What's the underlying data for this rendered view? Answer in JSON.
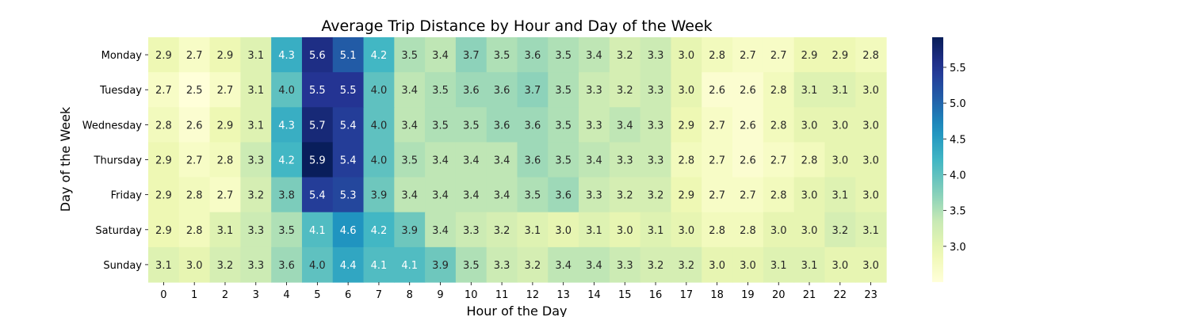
{
  "chart_data": {
    "type": "heatmap",
    "title": "Average Trip Distance by Hour and Day of the Week",
    "xlabel": "Hour of the Day",
    "ylabel": "Day of the Week",
    "x": [
      "0",
      "1",
      "2",
      "3",
      "4",
      "5",
      "6",
      "7",
      "8",
      "9",
      "10",
      "11",
      "12",
      "13",
      "14",
      "15",
      "16",
      "17",
      "18",
      "19",
      "20",
      "21",
      "22",
      "23"
    ],
    "y": [
      "Monday",
      "Tuesday",
      "Wednesday",
      "Thursday",
      "Friday",
      "Saturday",
      "Sunday"
    ],
    "values": [
      [
        2.9,
        2.7,
        2.9,
        3.1,
        4.3,
        5.6,
        5.1,
        4.2,
        3.5,
        3.4,
        3.7,
        3.5,
        3.6,
        3.5,
        3.4,
        3.2,
        3.3,
        3.0,
        2.8,
        2.7,
        2.7,
        2.9,
        2.9,
        2.8
      ],
      [
        2.7,
        2.5,
        2.7,
        3.1,
        4.0,
        5.5,
        5.5,
        4.0,
        3.4,
        3.5,
        3.6,
        3.6,
        3.7,
        3.5,
        3.3,
        3.2,
        3.3,
        3.0,
        2.6,
        2.6,
        2.8,
        3.1,
        3.1,
        3.0
      ],
      [
        2.8,
        2.6,
        2.9,
        3.1,
        4.3,
        5.7,
        5.4,
        4.0,
        3.4,
        3.5,
        3.5,
        3.6,
        3.6,
        3.5,
        3.3,
        3.4,
        3.3,
        2.9,
        2.7,
        2.6,
        2.8,
        3.0,
        3.0,
        3.0
      ],
      [
        2.9,
        2.7,
        2.8,
        3.3,
        4.2,
        5.9,
        5.4,
        4.0,
        3.5,
        3.4,
        3.4,
        3.4,
        3.6,
        3.5,
        3.4,
        3.3,
        3.3,
        2.8,
        2.7,
        2.6,
        2.7,
        2.8,
        3.0,
        3.0
      ],
      [
        2.9,
        2.8,
        2.7,
        3.2,
        3.8,
        5.4,
        5.3,
        3.9,
        3.4,
        3.4,
        3.4,
        3.4,
        3.5,
        3.6,
        3.3,
        3.2,
        3.2,
        2.9,
        2.7,
        2.7,
        2.8,
        3.0,
        3.1,
        3.0
      ],
      [
        2.9,
        2.8,
        3.1,
        3.3,
        3.5,
        4.1,
        4.6,
        4.2,
        3.9,
        3.4,
        3.3,
        3.2,
        3.1,
        3.0,
        3.1,
        3.0,
        3.1,
        3.0,
        2.8,
        2.8,
        3.0,
        3.0,
        3.2,
        3.1
      ],
      [
        3.1,
        3.0,
        3.2,
        3.3,
        3.6,
        4.0,
        4.4,
        4.1,
        4.1,
        3.9,
        3.5,
        3.3,
        3.2,
        3.4,
        3.4,
        3.3,
        3.2,
        3.2,
        3.0,
        3.0,
        3.1,
        3.1,
        3.0,
        3.0
      ]
    ],
    "colorscale": "YlGnBu",
    "vmin": 2.5,
    "vmax": 5.92,
    "colorbar_ticks": [
      "3.0",
      "3.5",
      "4.0",
      "4.5",
      "5.0",
      "5.5"
    ],
    "colorbar_tick_values": [
      3.0,
      3.5,
      4.0,
      4.5,
      5.0,
      5.5
    ],
    "grid": false,
    "legend": "colorbar-right"
  }
}
